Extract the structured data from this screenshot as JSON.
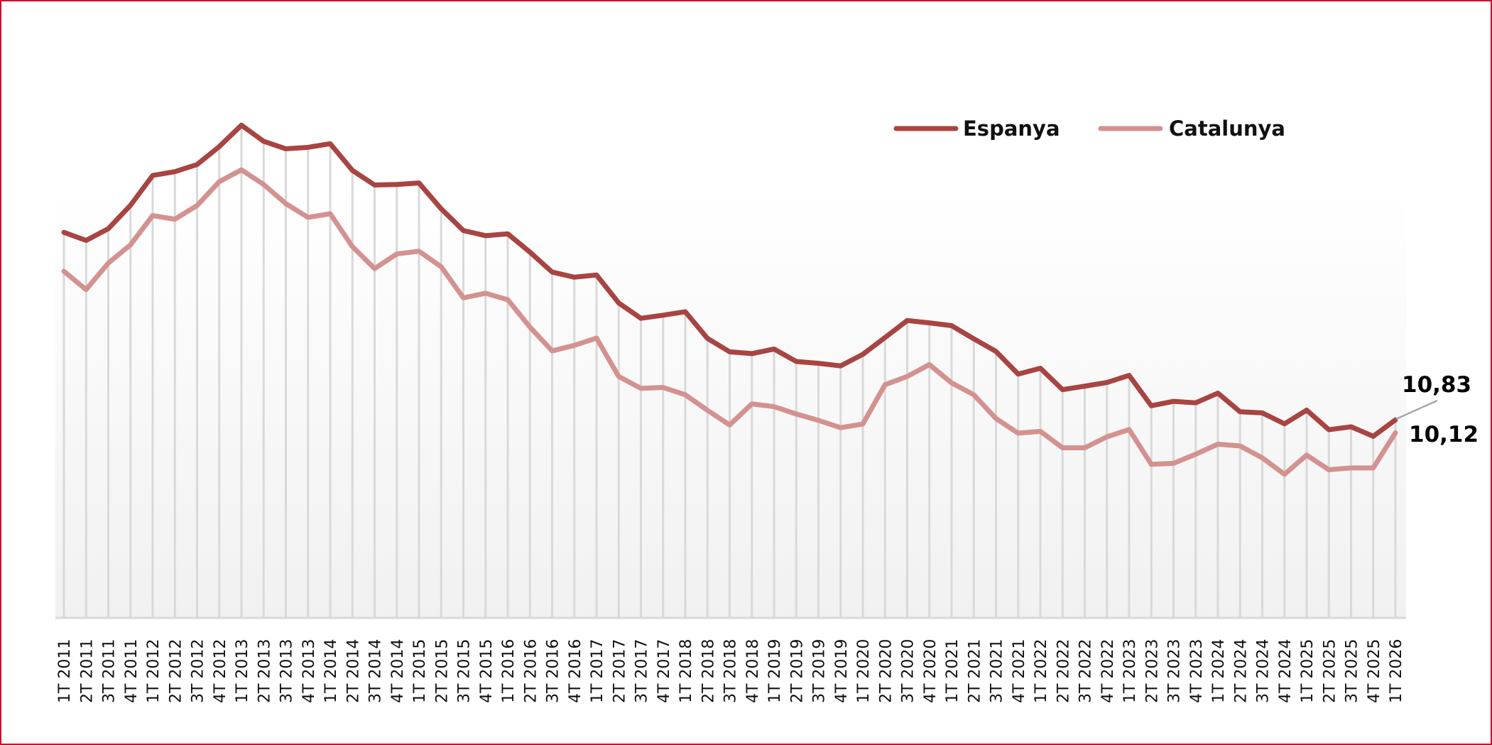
{
  "chart_data": {
    "type": "line",
    "title": "",
    "xlabel": "",
    "ylabel": "",
    "ylim": [
      0,
      32
    ],
    "grid": "vertical drop lines per category",
    "legend_position": "top-right",
    "categories": [
      "1T 2011",
      "2T 2011",
      "3T 2011",
      "4T 2011",
      "1T 2012",
      "2T 2012",
      "3T 2012",
      "4T 2012",
      "1T 2013",
      "2T 2013",
      "3T 2013",
      "4T 2013",
      "1T 2014",
      "2T 2014",
      "3T 2014",
      "4T 2014",
      "1T 2015",
      "2T 2015",
      "3T 2015",
      "4T 2015",
      "1T 2016",
      "2T 2016",
      "3T 2016",
      "4T 2016",
      "1T 2017",
      "2T 2017",
      "3T 2017",
      "4T 2017",
      "1T 2018",
      "2T 2018",
      "3T 2018",
      "4T 2018",
      "1T 2019",
      "2T 2019",
      "3T 2019",
      "4T 2019",
      "1T 2020",
      "2T 2020",
      "3T 2020",
      "4T 2020",
      "1T 2021",
      "2T 2021",
      "3T 2021",
      "4T 2021",
      "1T 2022",
      "2T 2022",
      "3T 2022",
      "4T 2022",
      "1T 2023",
      "2T 2023",
      "3T 2023",
      "4T 2023",
      "1T 2024",
      "2T 2024",
      "3T 2024",
      "4T 2024",
      "1T 2025",
      "2T 2025",
      "3T 2025",
      "4T 2025",
      "1T 2026"
    ],
    "series": [
      {
        "name": "Espanya",
        "color": "#a84442",
        "values": [
          21.08,
          20.64,
          21.28,
          22.56,
          24.19,
          24.4,
          24.79,
          25.77,
          26.94,
          26.06,
          25.65,
          25.73,
          25.93,
          24.47,
          23.67,
          23.7,
          23.78,
          22.37,
          21.18,
          20.9,
          21.0,
          20.0,
          18.91,
          18.63,
          18.75,
          17.22,
          16.38,
          16.55,
          16.74,
          15.28,
          14.55,
          14.45,
          14.7,
          14.02,
          13.92,
          13.78,
          14.41,
          15.33,
          16.26,
          16.13,
          15.98,
          15.26,
          14.57,
          13.33,
          13.65,
          12.48,
          12.67,
          12.87,
          13.26,
          11.6,
          11.84,
          11.76,
          12.29,
          11.27,
          11.21,
          10.61,
          11.36,
          10.29,
          10.45,
          9.93,
          10.83
        ]
      },
      {
        "name": "Catalunya",
        "color": "#d39290",
        "values": [
          18.95,
          17.95,
          19.4,
          20.4,
          22.0,
          21.8,
          22.55,
          23.85,
          24.5,
          23.7,
          22.65,
          21.9,
          22.1,
          20.3,
          19.1,
          19.9,
          20.05,
          19.2,
          17.5,
          17.75,
          17.4,
          15.9,
          14.6,
          14.9,
          15.3,
          13.2,
          12.55,
          12.6,
          12.2,
          11.35,
          10.55,
          11.7,
          11.55,
          11.15,
          10.8,
          10.4,
          10.6,
          12.75,
          13.2,
          13.85,
          12.85,
          12.2,
          10.9,
          10.1,
          10.2,
          9.3,
          9.3,
          9.9,
          10.3,
          8.4,
          8.45,
          8.95,
          9.5,
          9.4,
          8.75,
          7.85,
          8.9,
          8.1,
          8.2,
          8.2,
          10.12
        ]
      }
    ],
    "annotations": [
      {
        "series": "Espanya",
        "category": "1T 2026",
        "text": "10,83"
      },
      {
        "series": "Catalunya",
        "category": "1T 2026",
        "text": "10,12"
      }
    ]
  }
}
